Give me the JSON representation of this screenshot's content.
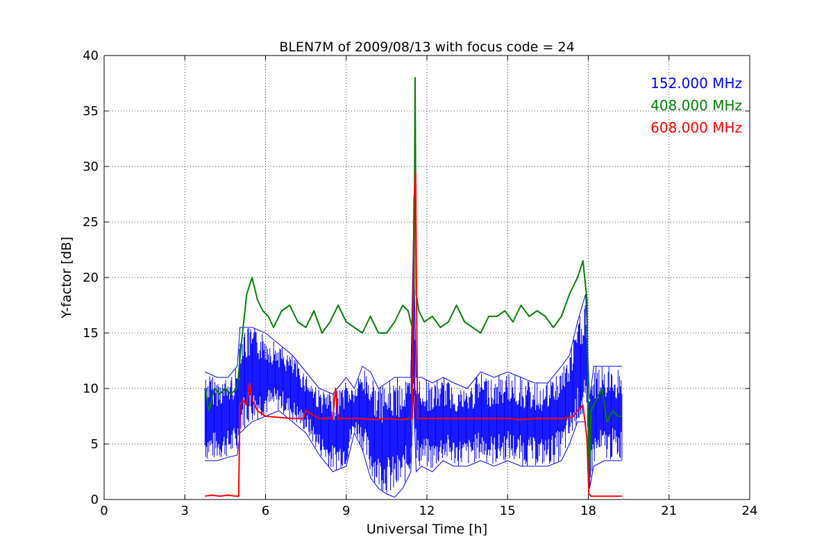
{
  "chart_data": {
    "type": "line",
    "title": "BLEN7M of 2009/08/13 with focus code = 24",
    "xlabel": "Universal Time [h]",
    "ylabel": "Y-factor [dB]",
    "xlim": [
      0,
      24
    ],
    "ylim": [
      0,
      40
    ],
    "xticks": [
      0,
      3,
      6,
      9,
      12,
      15,
      18,
      21,
      24
    ],
    "yticks": [
      0,
      5,
      10,
      15,
      20,
      25,
      30,
      35,
      40
    ],
    "grid": true,
    "legend_position": "top-right",
    "series": [
      {
        "name": "152.000 MHz",
        "color": "#0000ff",
        "style": "band",
        "x": [
          3.75,
          4.2,
          4.6,
          4.95,
          5.05,
          5.5,
          6.0,
          6.5,
          7.0,
          7.5,
          8.0,
          8.5,
          9.0,
          9.3,
          9.6,
          9.9,
          10.2,
          10.5,
          10.8,
          11.1,
          11.4,
          11.5,
          11.6,
          11.8,
          12.2,
          12.6,
          13.0,
          13.5,
          14.0,
          14.5,
          15.0,
          15.5,
          16.0,
          16.5,
          17.0,
          17.3,
          17.6,
          17.9,
          18.05,
          18.2,
          18.6,
          19.25
        ],
        "low": [
          3.5,
          3.5,
          3.8,
          4.0,
          6.0,
          7.0,
          7.5,
          8.0,
          7.0,
          6.0,
          4.0,
          2.5,
          3.0,
          6.0,
          4.5,
          2.0,
          1.0,
          0.5,
          0.2,
          1.0,
          2.5,
          10.0,
          2.5,
          3.0,
          2.5,
          3.5,
          3.0,
          3.0,
          3.5,
          3.0,
          3.5,
          3.0,
          3.0,
          3.0,
          3.5,
          5.0,
          7.0,
          7.0,
          1.0,
          3.0,
          3.5,
          3.5
        ],
        "high": [
          11.5,
          11.0,
          11.0,
          12.0,
          15.5,
          15.5,
          15.0,
          14.0,
          13.0,
          11.5,
          10.0,
          9.5,
          11.0,
          10.0,
          12.0,
          11.5,
          10.0,
          10.5,
          11.0,
          11.0,
          11.0,
          24.0,
          11.0,
          11.0,
          10.5,
          11.0,
          10.5,
          10.0,
          11.5,
          11.0,
          11.5,
          11.0,
          10.5,
          10.5,
          12.0,
          13.0,
          16.0,
          18.5,
          9.0,
          12.0,
          12.0,
          12.0
        ]
      },
      {
        "name": "408.000 MHz",
        "color": "#008000",
        "style": "line",
        "x": [
          3.75,
          3.9,
          4.1,
          4.3,
          4.5,
          4.7,
          4.95,
          5.1,
          5.3,
          5.5,
          5.7,
          5.9,
          6.1,
          6.3,
          6.6,
          6.9,
          7.2,
          7.5,
          7.8,
          8.1,
          8.4,
          8.7,
          9.0,
          9.3,
          9.6,
          9.9,
          10.2,
          10.5,
          10.8,
          11.1,
          11.3,
          11.45,
          11.52,
          11.56,
          11.6,
          11.7,
          11.9,
          12.2,
          12.5,
          12.8,
          13.1,
          13.4,
          13.7,
          14.0,
          14.3,
          14.6,
          14.9,
          15.2,
          15.5,
          15.8,
          16.1,
          16.4,
          16.7,
          17.0,
          17.3,
          17.6,
          17.8,
          17.95,
          18.02,
          18.1,
          18.3,
          18.5,
          18.7,
          18.9,
          19.1,
          19.25
        ],
        "y": [
          10.0,
          8.0,
          10.0,
          9.5,
          10.0,
          9.5,
          10.0,
          14.0,
          18.5,
          20.0,
          18.0,
          17.0,
          16.5,
          15.5,
          17.0,
          17.5,
          16.0,
          15.5,
          17.0,
          15.0,
          16.0,
          17.5,
          16.0,
          15.5,
          15.0,
          16.5,
          15.0,
          15.0,
          16.0,
          17.5,
          17.0,
          15.5,
          18.0,
          38.0,
          18.5,
          17.0,
          16.0,
          16.5,
          15.5,
          16.0,
          17.5,
          16.0,
          15.5,
          15.0,
          16.5,
          16.5,
          17.0,
          16.0,
          17.5,
          16.5,
          17.0,
          16.5,
          15.5,
          16.5,
          18.5,
          20.0,
          21.5,
          18.0,
          1.0,
          8.0,
          9.0,
          10.0,
          7.0,
          8.0,
          7.5,
          7.5
        ]
      },
      {
        "name": "608.000 MHz",
        "color": "#ff0000",
        "style": "line",
        "x": [
          3.75,
          4.0,
          4.3,
          4.6,
          4.9,
          5.0,
          5.05,
          5.15,
          5.3,
          5.4,
          5.5,
          5.7,
          6.0,
          6.5,
          7.0,
          7.4,
          7.5,
          8.0,
          8.5,
          8.6,
          8.7,
          9.0,
          9.5,
          10.0,
          10.5,
          11.0,
          11.45,
          11.52,
          11.58,
          11.65,
          11.8,
          12.5,
          13.0,
          13.5,
          14.0,
          14.5,
          15.0,
          15.5,
          16.0,
          16.5,
          17.0,
          17.4,
          17.6,
          17.8,
          17.95,
          18.02,
          18.1,
          18.5,
          19.25
        ],
        "y": [
          0.3,
          0.4,
          0.3,
          0.4,
          0.3,
          0.3,
          8.5,
          9.0,
          8.5,
          10.5,
          9.0,
          8.0,
          7.5,
          7.4,
          7.3,
          7.3,
          8.0,
          7.3,
          7.3,
          10.0,
          7.3,
          7.3,
          7.3,
          7.2,
          7.3,
          7.2,
          7.3,
          27.0,
          29.5,
          7.3,
          7.3,
          7.3,
          7.3,
          7.3,
          7.3,
          7.3,
          7.3,
          7.2,
          7.3,
          7.3,
          7.3,
          7.4,
          8.0,
          8.5,
          5.5,
          0.5,
          0.3,
          0.3,
          0.3
        ]
      }
    ]
  }
}
